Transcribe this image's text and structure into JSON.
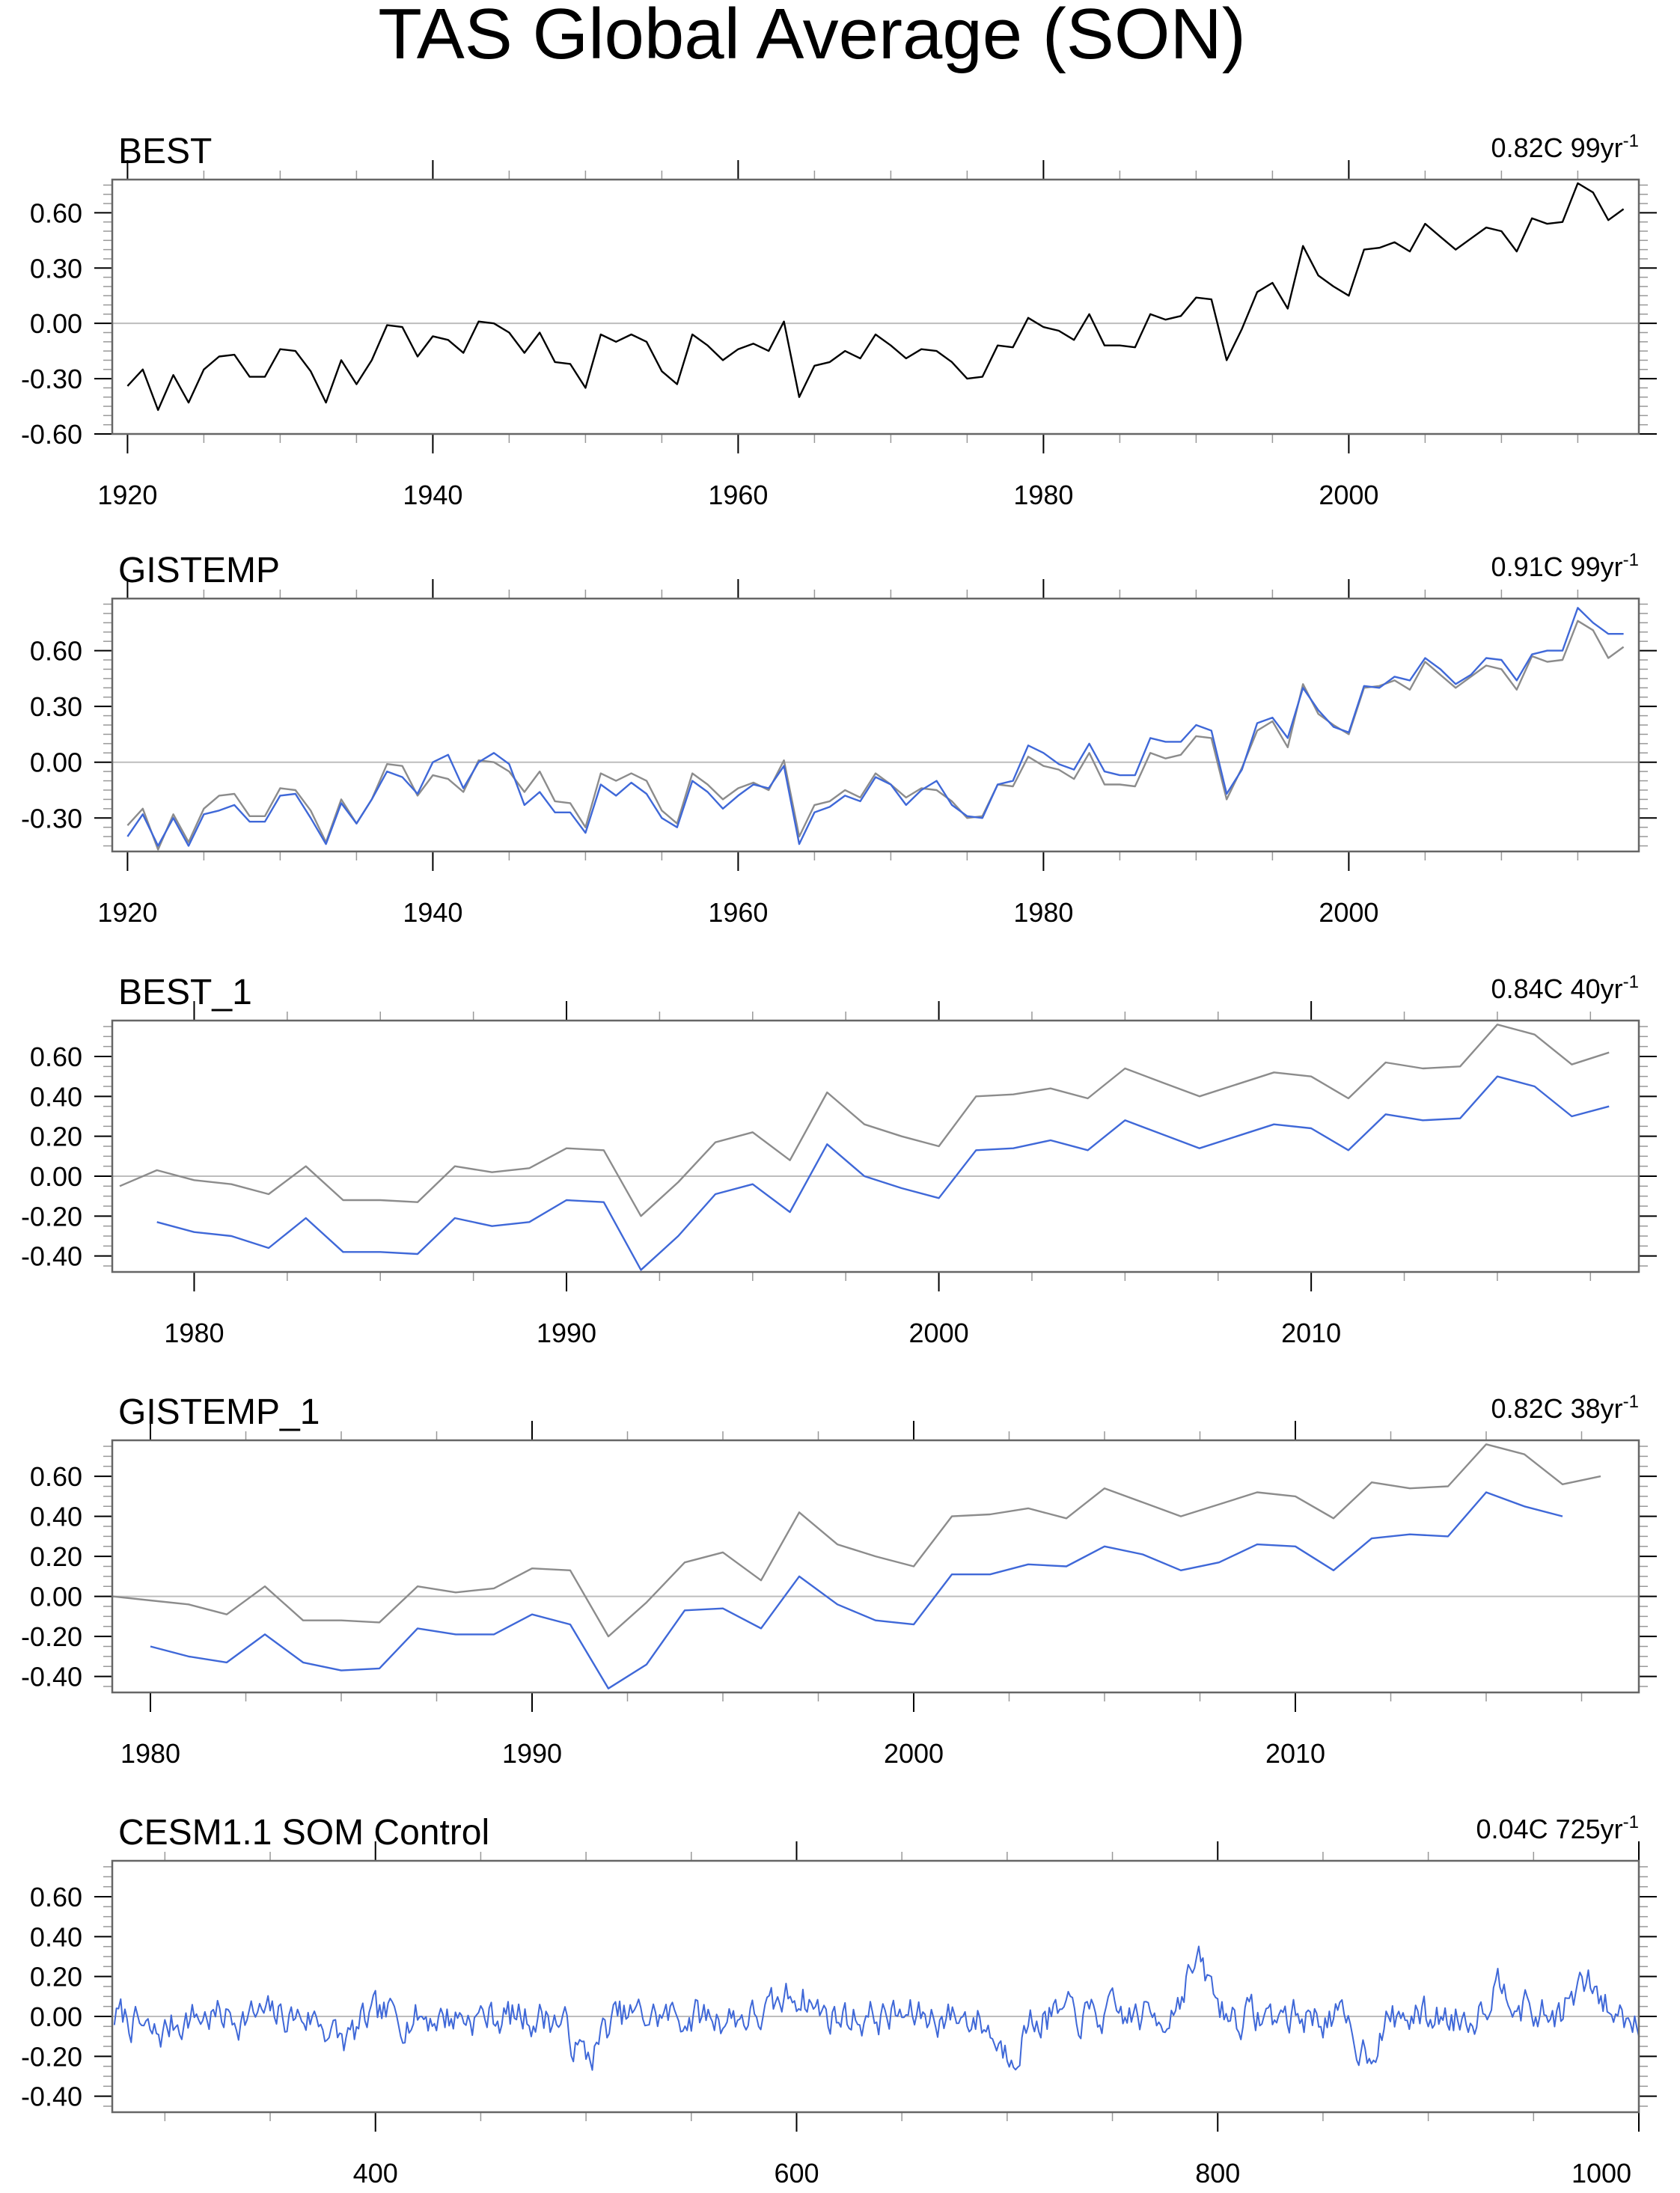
{
  "title": "TAS Global Average (SON)",
  "colors": {
    "obs": "#000000",
    "obs_ref": "#8c8c8c",
    "model": "#3f68d8",
    "zero_line": "#bdbdbd",
    "frame": "#666666"
  },
  "chart_data": [
    {
      "type": "line",
      "name": "BEST",
      "trend_value": "0.82C",
      "trend_years": "99yr",
      "trend_exp": "-1",
      "xlim": [
        1919,
        2019
      ],
      "ylim": [
        -0.6,
        0.78
      ],
      "xticks": [
        1920,
        1940,
        1960,
        1980,
        2000
      ],
      "yticks": [
        -0.6,
        -0.3,
        0.0,
        0.3,
        0.6
      ],
      "ytick_labels": [
        "-0.60",
        "-0.30",
        "0.00",
        "0.30",
        "0.60"
      ],
      "x_start": 1920,
      "series": [
        {
          "name": "BEST",
          "color": "obs",
          "values": [
            -0.34,
            -0.25,
            -0.47,
            -0.28,
            -0.43,
            -0.25,
            -0.18,
            -0.17,
            -0.29,
            -0.29,
            -0.14,
            -0.15,
            -0.26,
            -0.43,
            -0.2,
            -0.33,
            -0.2,
            -0.01,
            -0.02,
            -0.18,
            -0.07,
            -0.09,
            -0.16,
            0.01,
            0.0,
            -0.05,
            -0.16,
            -0.05,
            -0.21,
            -0.22,
            -0.35,
            -0.06,
            -0.1,
            -0.06,
            -0.1,
            -0.26,
            -0.33,
            -0.06,
            -0.12,
            -0.2,
            -0.14,
            -0.11,
            -0.15,
            0.01,
            -0.4,
            -0.23,
            -0.21,
            -0.15,
            -0.19,
            -0.06,
            -0.12,
            -0.19,
            -0.14,
            -0.15,
            -0.21,
            -0.3,
            -0.29,
            -0.12,
            -0.13,
            0.03,
            -0.02,
            -0.04,
            -0.09,
            0.05,
            -0.12,
            -0.12,
            -0.13,
            0.05,
            0.02,
            0.04,
            0.14,
            0.13,
            -0.2,
            -0.03,
            0.17,
            0.22,
            0.08,
            0.42,
            0.26,
            0.2,
            0.15,
            0.4,
            0.41,
            0.44,
            0.39,
            0.54,
            0.47,
            0.4,
            0.46,
            0.52,
            0.5,
            0.39,
            0.57,
            0.54,
            0.55,
            0.76,
            0.71,
            0.56,
            0.62
          ]
        }
      ]
    },
    {
      "type": "line",
      "name": "GISTEMP",
      "trend_value": "0.91C",
      "trend_years": "99yr",
      "trend_exp": "-1",
      "xlim": [
        1919,
        2019
      ],
      "ylim": [
        -0.48,
        0.88
      ],
      "xticks": [
        1920,
        1940,
        1960,
        1980,
        2000
      ],
      "yticks": [
        -0.3,
        0.0,
        0.3,
        0.6
      ],
      "ytick_labels": [
        "-0.30",
        "0.00",
        "0.30",
        "0.60"
      ],
      "x_start": 1920,
      "series": [
        {
          "name": "BEST",
          "color": "obs_ref",
          "values": [
            -0.34,
            -0.25,
            -0.47,
            -0.28,
            -0.43,
            -0.25,
            -0.18,
            -0.17,
            -0.29,
            -0.29,
            -0.14,
            -0.15,
            -0.26,
            -0.43,
            -0.2,
            -0.33,
            -0.2,
            -0.01,
            -0.02,
            -0.18,
            -0.07,
            -0.09,
            -0.16,
            0.01,
            0.0,
            -0.05,
            -0.16,
            -0.05,
            -0.21,
            -0.22,
            -0.35,
            -0.06,
            -0.1,
            -0.06,
            -0.1,
            -0.26,
            -0.33,
            -0.06,
            -0.12,
            -0.2,
            -0.14,
            -0.11,
            -0.15,
            0.01,
            -0.4,
            -0.23,
            -0.21,
            -0.15,
            -0.19,
            -0.06,
            -0.12,
            -0.19,
            -0.14,
            -0.15,
            -0.21,
            -0.3,
            -0.29,
            -0.12,
            -0.13,
            0.03,
            -0.02,
            -0.04,
            -0.09,
            0.05,
            -0.12,
            -0.12,
            -0.13,
            0.05,
            0.02,
            0.04,
            0.14,
            0.13,
            -0.2,
            -0.03,
            0.17,
            0.22,
            0.08,
            0.42,
            0.26,
            0.2,
            0.15,
            0.4,
            0.41,
            0.44,
            0.39,
            0.54,
            0.47,
            0.4,
            0.46,
            0.52,
            0.5,
            0.39,
            0.57,
            0.54,
            0.55,
            0.76,
            0.71,
            0.56,
            0.62
          ]
        },
        {
          "name": "GISTEMP",
          "color": "model",
          "values": [
            -0.4,
            -0.28,
            -0.45,
            -0.3,
            -0.45,
            -0.28,
            -0.26,
            -0.23,
            -0.32,
            -0.32,
            -0.18,
            -0.17,
            -0.3,
            -0.44,
            -0.22,
            -0.33,
            -0.2,
            -0.05,
            -0.08,
            -0.17,
            0.0,
            0.04,
            -0.14,
            0.0,
            0.05,
            -0.01,
            -0.23,
            -0.16,
            -0.27,
            -0.27,
            -0.38,
            -0.12,
            -0.18,
            -0.11,
            -0.17,
            -0.3,
            -0.35,
            -0.1,
            -0.16,
            -0.25,
            -0.18,
            -0.12,
            -0.14,
            -0.02,
            -0.44,
            -0.27,
            -0.24,
            -0.18,
            -0.21,
            -0.08,
            -0.12,
            -0.23,
            -0.15,
            -0.1,
            -0.23,
            -0.29,
            -0.3,
            -0.12,
            -0.1,
            0.09,
            0.05,
            -0.01,
            -0.04,
            0.1,
            -0.05,
            -0.07,
            -0.07,
            0.13,
            0.11,
            0.11,
            0.2,
            0.17,
            -0.17,
            -0.04,
            0.21,
            0.24,
            0.13,
            0.4,
            0.28,
            0.19,
            0.16,
            0.41,
            0.4,
            0.46,
            0.44,
            0.56,
            0.5,
            0.42,
            0.47,
            0.56,
            0.55,
            0.44,
            0.58,
            0.6,
            0.6,
            0.83,
            0.75,
            0.69,
            0.69
          ]
        }
      ]
    },
    {
      "type": "line",
      "name": "BEST_1",
      "trend_value": "0.84C",
      "trend_years": "40yr",
      "trend_exp": "-1",
      "xlim": [
        1977.8,
        2018.8
      ],
      "ylim": [
        -0.48,
        0.78
      ],
      "xticks": [
        1980,
        1990,
        2000,
        2010
      ],
      "yticks": [
        -0.4,
        -0.2,
        0.0,
        0.2,
        0.4,
        0.6
      ],
      "ytick_labels": [
        "-0.40",
        "-0.20",
        "0.00",
        "0.20",
        "0.40",
        "0.60"
      ],
      "series": [
        {
          "name": "BEST",
          "color": "obs_ref",
          "x_start": 1978,
          "values": [
            -0.05,
            0.03,
            -0.02,
            -0.04,
            -0.09,
            0.05,
            -0.12,
            -0.12,
            -0.13,
            0.05,
            0.02,
            0.04,
            0.14,
            0.13,
            -0.2,
            -0.03,
            0.17,
            0.22,
            0.08,
            0.42,
            0.26,
            0.2,
            0.15,
            0.4,
            0.41,
            0.44,
            0.39,
            0.54,
            0.47,
            0.4,
            0.46,
            0.52,
            0.5,
            0.39,
            0.57,
            0.54,
            0.55,
            0.76,
            0.71,
            0.56,
            0.62
          ]
        },
        {
          "name": "BEST_1",
          "color": "model",
          "x_start": 1979,
          "values": [
            -0.23,
            -0.28,
            -0.3,
            -0.36,
            -0.21,
            -0.38,
            -0.38,
            -0.39,
            -0.21,
            -0.25,
            -0.23,
            -0.12,
            -0.13,
            -0.47,
            -0.3,
            -0.09,
            -0.04,
            -0.18,
            0.16,
            0.0,
            -0.06,
            -0.11,
            0.13,
            0.14,
            0.18,
            0.13,
            0.28,
            0.21,
            0.14,
            0.2,
            0.26,
            0.24,
            0.13,
            0.31,
            0.28,
            0.29,
            0.5,
            0.45,
            0.3,
            0.35
          ]
        }
      ]
    },
    {
      "type": "line",
      "name": "GISTEMP_1",
      "trend_value": "0.82C",
      "trend_years": "38yr",
      "trend_exp": "-1",
      "xlim": [
        1979,
        2019
      ],
      "ylim": [
        -0.48,
        0.78
      ],
      "xticks": [
        1980,
        1990,
        2000,
        2010
      ],
      "yticks": [
        -0.4,
        -0.2,
        0.0,
        0.2,
        0.4,
        0.6
      ],
      "ytick_labels": [
        "-0.40",
        "-0.20",
        "0.00",
        "0.20",
        "0.40",
        "0.60"
      ],
      "series": [
        {
          "name": "BEST",
          "color": "obs_ref",
          "x_start": 1979,
          "values": [
            0.0,
            -0.02,
            -0.04,
            -0.09,
            0.05,
            -0.12,
            -0.12,
            -0.13,
            0.05,
            0.02,
            0.04,
            0.14,
            0.13,
            -0.2,
            -0.03,
            0.17,
            0.22,
            0.08,
            0.42,
            0.26,
            0.2,
            0.15,
            0.4,
            0.41,
            0.44,
            0.39,
            0.54,
            0.47,
            0.4,
            0.46,
            0.52,
            0.5,
            0.39,
            0.57,
            0.54,
            0.55,
            0.76,
            0.71,
            0.56,
            0.6
          ]
        },
        {
          "name": "GISTEMP_1",
          "color": "model",
          "x_start": 1980,
          "values": [
            -0.25,
            -0.3,
            -0.33,
            -0.19,
            -0.33,
            -0.37,
            -0.36,
            -0.16,
            -0.19,
            -0.19,
            -0.09,
            -0.14,
            -0.46,
            -0.34,
            -0.07,
            -0.06,
            -0.16,
            0.1,
            -0.04,
            -0.12,
            -0.14,
            0.11,
            0.11,
            0.16,
            0.15,
            0.25,
            0.21,
            0.13,
            0.17,
            0.26,
            0.25,
            0.13,
            0.29,
            0.31,
            0.3,
            0.52,
            0.45,
            0.4
          ]
        }
      ]
    },
    {
      "type": "line",
      "name": "CESM1.1 SOM Control",
      "trend_value": "0.04C",
      "trend_years": "725yr",
      "trend_exp": "-1",
      "xlim": [
        275,
        1000
      ],
      "ylim": [
        -0.48,
        0.78
      ],
      "xticks": [
        400,
        600,
        800,
        1000
      ],
      "yticks": [
        -0.4,
        -0.2,
        0.0,
        0.2,
        0.4,
        0.6
      ],
      "ytick_labels": [
        "-0.40",
        "-0.20",
        "0.00",
        "0.20",
        "0.40",
        "0.60"
      ],
      "series": [
        {
          "name": "CESM1.1 SOM Control",
          "color": "model",
          "x_start": 276,
          "generated": "noise",
          "seed": 7,
          "n": 725,
          "amplitude": 0.08,
          "features": [
            [
              295,
              -0.1
            ],
            [
              385,
              -0.12
            ],
            [
              500,
              -0.2
            ],
            [
              600,
              0.12
            ],
            [
              700,
              -0.17
            ],
            [
              790,
              0.25
            ],
            [
              870,
              -0.16
            ],
            [
              935,
              0.18
            ],
            [
              975,
              0.15
            ]
          ]
        }
      ]
    }
  ]
}
